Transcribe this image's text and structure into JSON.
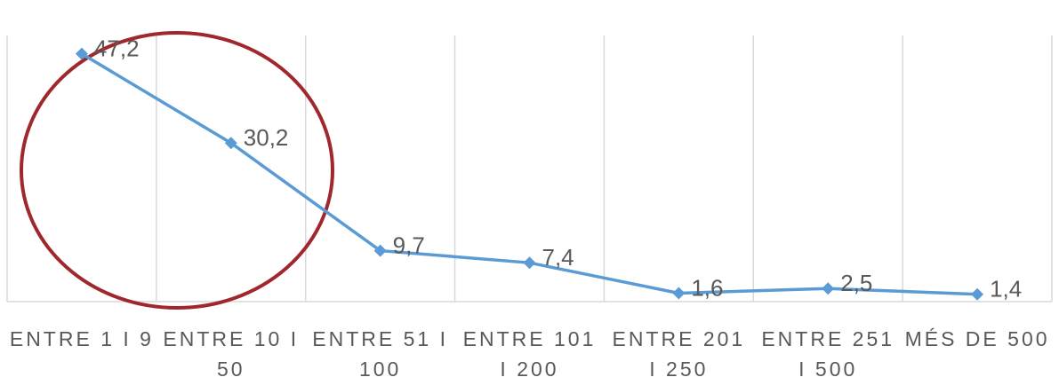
{
  "chart_data": {
    "type": "line",
    "categories": [
      "ENTRE 1 I 9",
      "ENTRE 10 I 50",
      "ENTRE 51 I 100",
      "ENTRE 101 I 200",
      "ENTRE 201 I 250",
      "ENTRE 251 I 500",
      "MÉS DE 500"
    ],
    "series": [
      {
        "name": "Series1",
        "color": "#5b9bd5",
        "values": [
          47.2,
          30.2,
          9.7,
          7.4,
          1.6,
          2.5,
          1.4
        ],
        "value_labels": [
          "47,2",
          "30,2",
          "9,7",
          "7,4",
          "1,6",
          "2,5",
          "1,4"
        ]
      }
    ],
    "ylim": [
      0,
      50
    ]
  }
}
